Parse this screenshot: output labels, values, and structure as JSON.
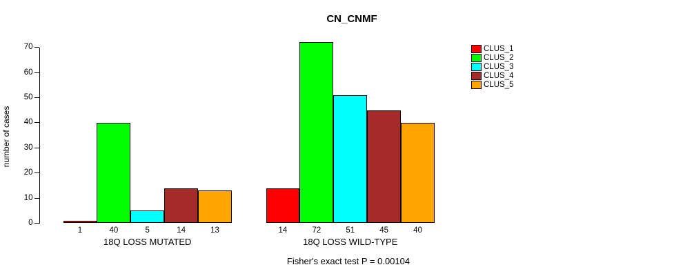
{
  "chart_data": {
    "type": "bar",
    "title": "CN_CNMF",
    "ylabel": "number of cases",
    "ylim": [
      0,
      70
    ],
    "yticks": [
      0,
      10,
      20,
      30,
      40,
      50,
      60,
      70
    ],
    "grid": false,
    "legend_position": "top-right",
    "categories": [
      "18Q LOSS MUTATED",
      "18Q LOSS WILD-TYPE"
    ],
    "series": [
      {
        "name": "CLUS_1",
        "color": "#FF0000",
        "values": [
          1,
          14
        ]
      },
      {
        "name": "CLUS_2",
        "color": "#00FF00",
        "values": [
          40,
          72
        ]
      },
      {
        "name": "CLUS_3",
        "color": "#00FFFF",
        "values": [
          5,
          51
        ]
      },
      {
        "name": "CLUS_4",
        "color": "#A52A2A",
        "values": [
          14,
          45
        ]
      },
      {
        "name": "CLUS_5",
        "color": "#FFA500",
        "values": [
          13,
          40
        ]
      }
    ],
    "bar_value_labels": [
      [
        "1",
        "40",
        "5",
        "14",
        "13"
      ],
      [
        "14",
        "72",
        "51",
        "45",
        "40"
      ]
    ],
    "annotation": "Fisher's exact test P = 0.00104"
  },
  "legend": {
    "entries": [
      {
        "label": "CLUS_1",
        "color": "#FF0000"
      },
      {
        "label": "CLUS_2",
        "color": "#00FF00"
      },
      {
        "label": "CLUS_3",
        "color": "#00FFFF"
      },
      {
        "label": "CLUS_4",
        "color": "#A52A2A"
      },
      {
        "label": "CLUS_5",
        "color": "#FFA500"
      }
    ]
  }
}
